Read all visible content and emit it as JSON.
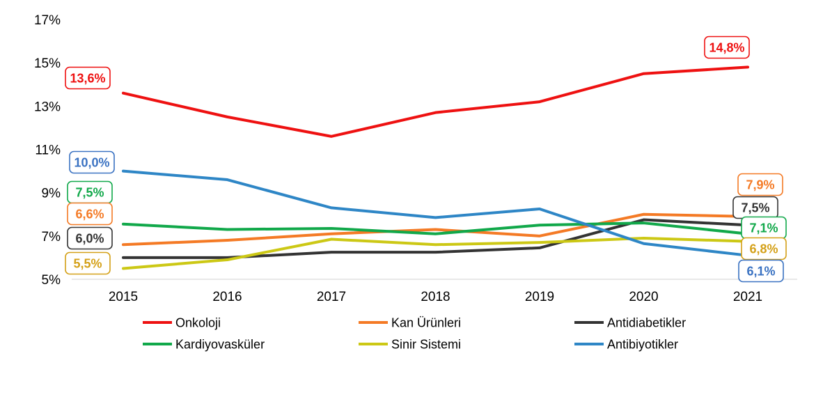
{
  "chart_data": {
    "type": "line",
    "title": "",
    "xlabel": "",
    "ylabel": "",
    "x": [
      "2015",
      "2016",
      "2017",
      "2018",
      "2019",
      "2020",
      "2021"
    ],
    "ylim": [
      5,
      17
    ],
    "yticks": [
      "5%",
      "7%",
      "9%",
      "11%",
      "13%",
      "15%",
      "17%"
    ],
    "grid": false,
    "legend_position": "bottom",
    "series": [
      {
        "name": "Onkoloji",
        "color": "#EE1111",
        "values": [
          13.6,
          12.5,
          11.6,
          12.7,
          13.2,
          14.5,
          14.8
        ]
      },
      {
        "name": "Kan Ürünleri",
        "color": "#F47A25",
        "values": [
          6.6,
          6.8,
          7.1,
          7.3,
          7.0,
          8.0,
          7.9
        ]
      },
      {
        "name": "Antidiabetikler",
        "color": "#333333",
        "values": [
          6.0,
          6.0,
          6.25,
          6.25,
          6.45,
          7.75,
          7.5
        ]
      },
      {
        "name": "Kardiyovasküler",
        "color": "#11A84A",
        "values": [
          7.55,
          7.3,
          7.35,
          7.1,
          7.5,
          7.6,
          7.1
        ]
      },
      {
        "name": "Sinir Sistemi",
        "color": "#CCC815",
        "values": [
          5.5,
          5.9,
          6.85,
          6.6,
          6.7,
          6.9,
          6.75
        ]
      },
      {
        "name": "Antibiyotikler",
        "color": "#2E86C6",
        "values": [
          10.0,
          9.6,
          8.3,
          7.85,
          8.25,
          6.65,
          6.1
        ]
      }
    ],
    "annotations": [
      {
        "series": "Onkoloji",
        "x": "2015",
        "text": "13,6%",
        "color": "#EE1111"
      },
      {
        "series": "Onkoloji",
        "x": "2021",
        "text": "14,8%",
        "color": "#EE1111"
      },
      {
        "series": "Antibiyotikler",
        "x": "2015",
        "text": "10,0%",
        "color": "#3A72C2"
      },
      {
        "series": "Kardiyovasküler",
        "x": "2015",
        "text": "7,5%",
        "color": "#11A84A"
      },
      {
        "series": "Kan Ürünleri",
        "x": "2015",
        "text": "6,6%",
        "color": "#F47A25"
      },
      {
        "series": "Antidiabetikler",
        "x": "2015",
        "text": "6,0%",
        "color": "#333333"
      },
      {
        "series": "Sinir Sistemi",
        "x": "2015",
        "text": "5,5%",
        "color": "#D4A017"
      },
      {
        "series": "Kan Ürünleri",
        "x": "2021",
        "text": "7,9%",
        "color": "#F47A25"
      },
      {
        "series": "Antidiabetikler",
        "x": "2021",
        "text": "7,5%",
        "color": "#333333"
      },
      {
        "series": "Kardiyovasküler",
        "x": "2021",
        "text": "7,1%",
        "color": "#11A84A"
      },
      {
        "series": "Sinir Sistemi",
        "x": "2021",
        "text": "6,8%",
        "color": "#D4A017"
      },
      {
        "series": "Antibiyotikler",
        "x": "2021",
        "text": "6,1%",
        "color": "#3A72C2"
      }
    ]
  }
}
